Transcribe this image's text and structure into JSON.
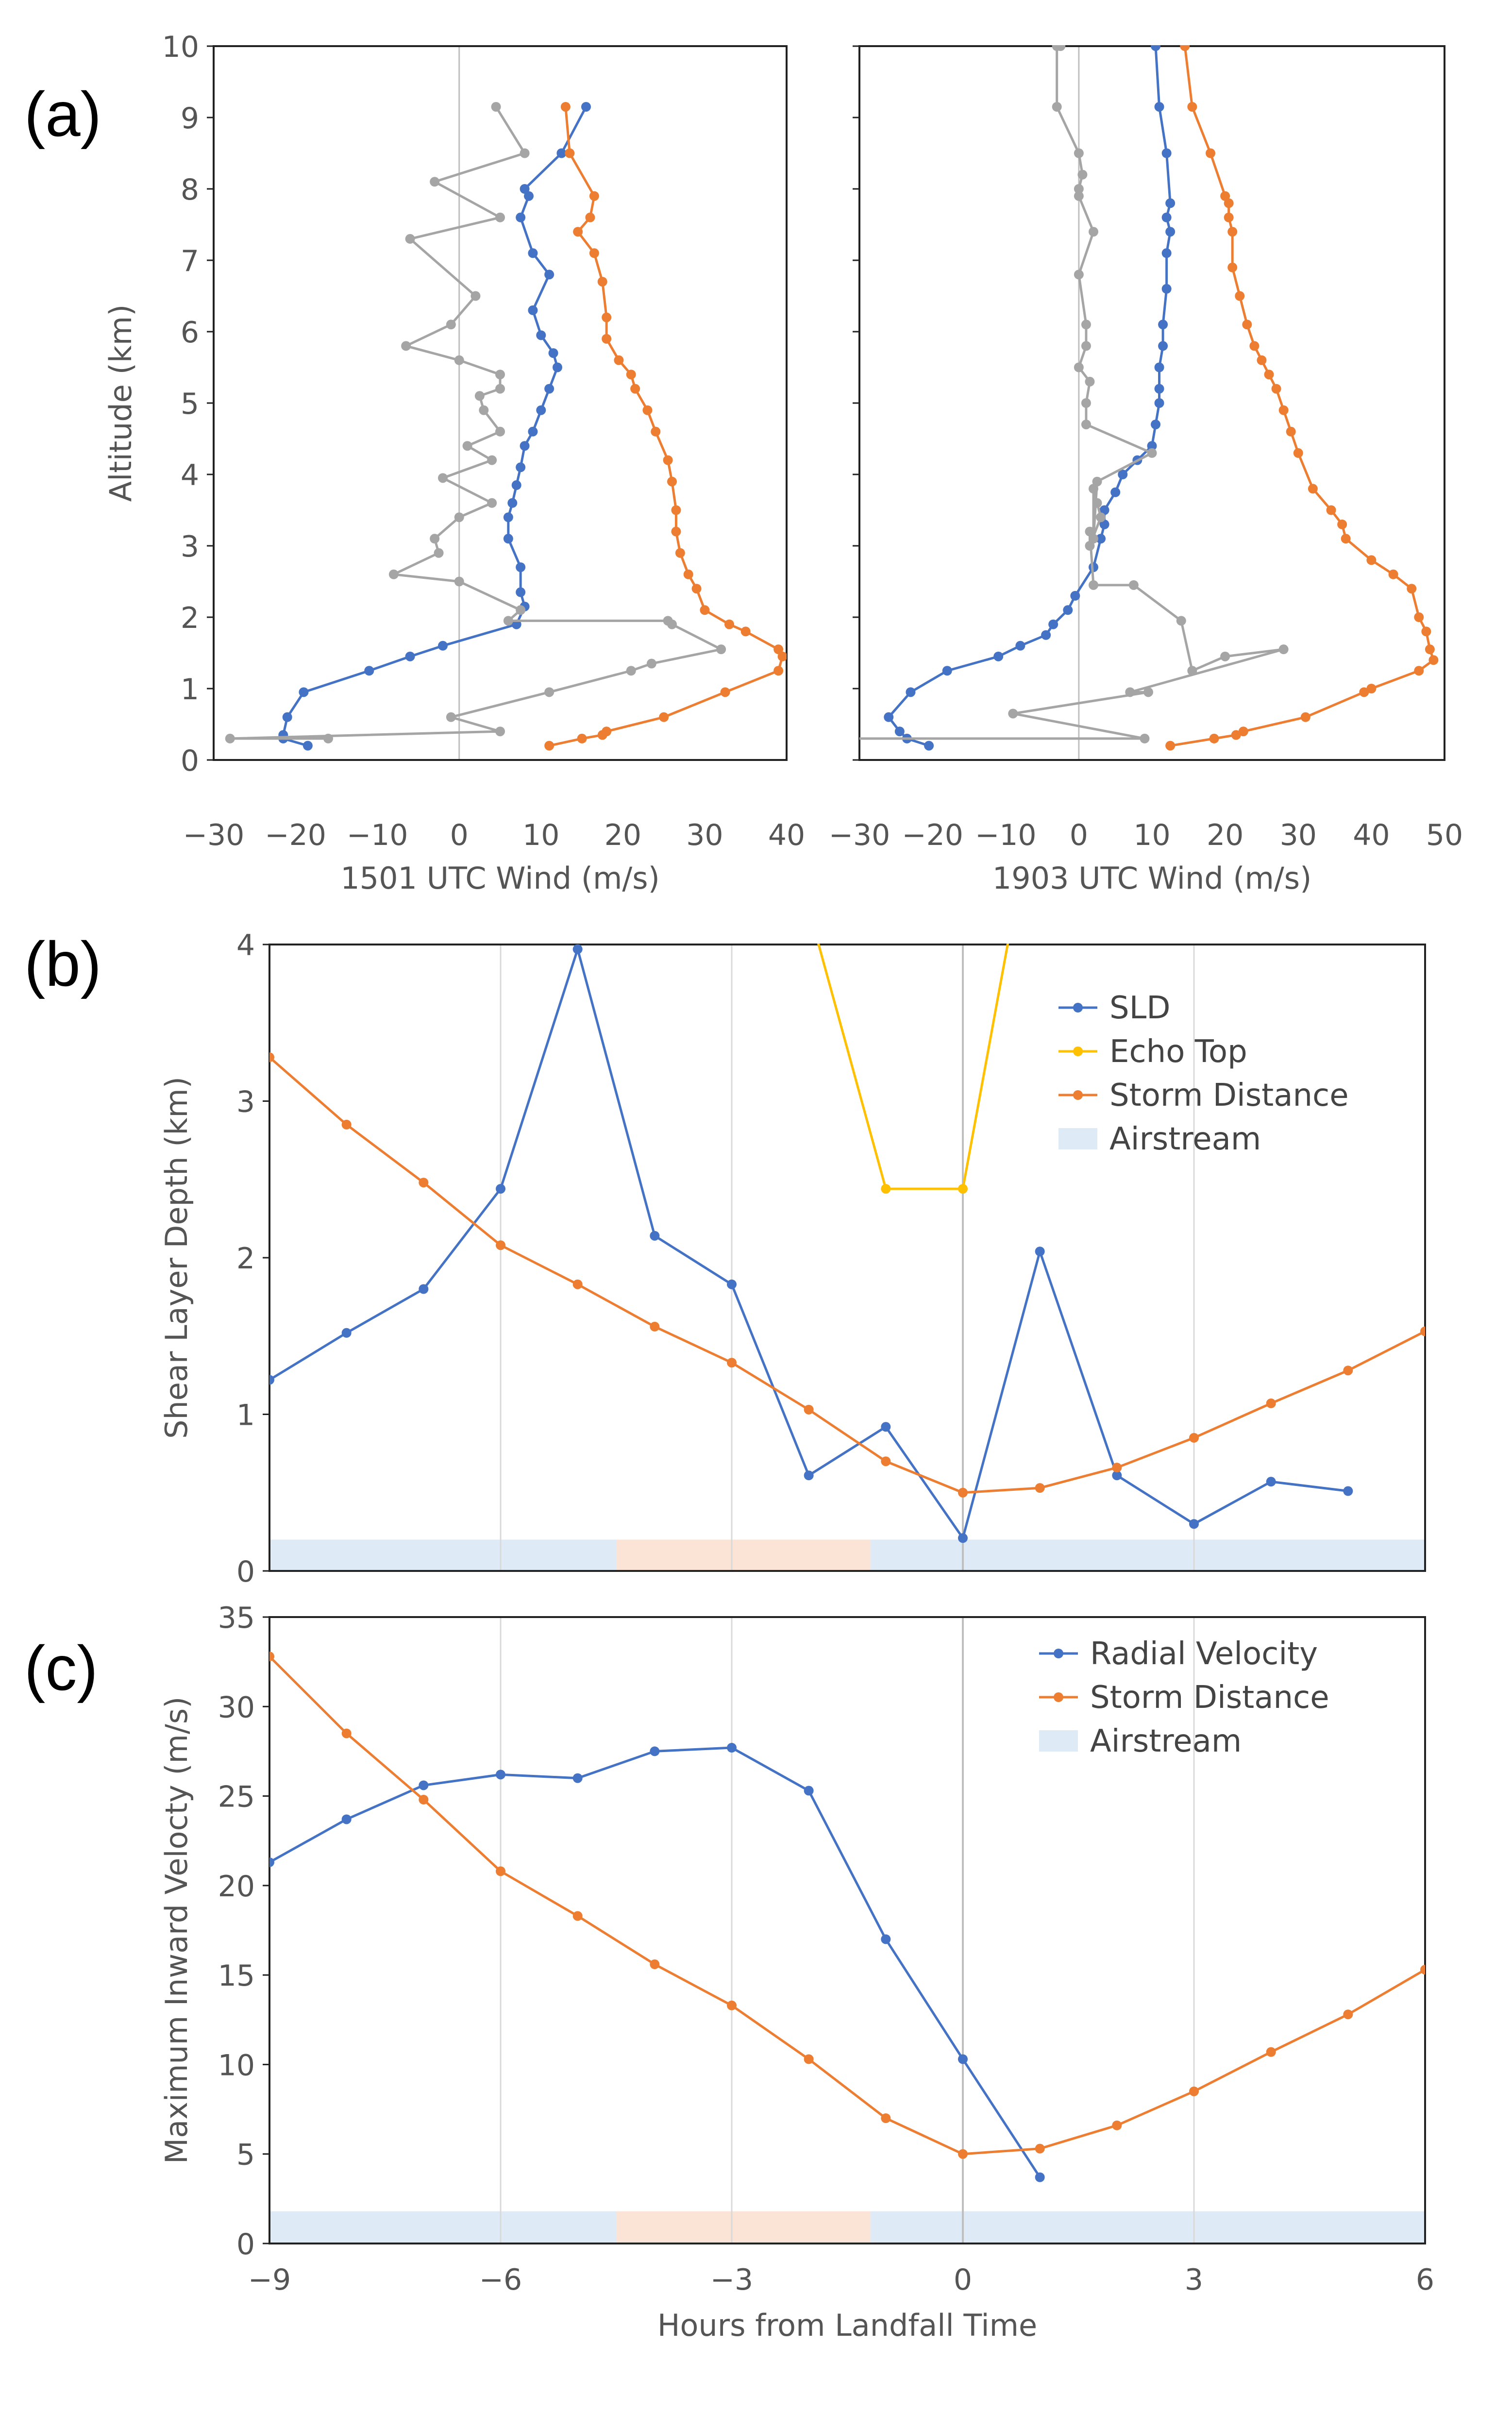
{
  "panel_labels": [
    "(a)",
    "(b)",
    "(c)"
  ],
  "colors": {
    "blue": "#4472C4",
    "orange": "#ED7D31",
    "gray": "#A5A5A5",
    "yellow": "#FFC000",
    "airstream_blue": "#DEEAF6",
    "airstream_peach": "#FBE4D5",
    "grid": "#D9D9D9",
    "zero": "#BFBFBF"
  },
  "chart_data": [
    {
      "id": "a1",
      "type": "line",
      "xlabel": "1501 UTC Wind (m/s)",
      "ylabel": "Altitude (km)",
      "xlim": [
        -30,
        40
      ],
      "ylim": [
        0,
        10
      ],
      "xticks": [
        -30,
        -20,
        -10,
        0,
        10,
        20,
        30,
        40
      ],
      "xtick_labels": [
        "−30",
        "−20",
        "−10",
        "0",
        "10",
        "20",
        "30",
        "40"
      ],
      "yticks": [
        0,
        1,
        2,
        3,
        4,
        5,
        6,
        7,
        8,
        9,
        10
      ],
      "series": [
        {
          "color": "blue",
          "x": [
            -18.5,
            -21.5,
            -21.5,
            -21,
            -19,
            -11,
            -6,
            -2,
            7,
            8,
            7.5,
            7.5,
            6,
            6,
            6.5,
            7,
            7.5,
            8,
            9,
            10,
            11,
            12,
            11.5,
            10,
            9,
            11,
            9,
            7.5,
            8.5,
            8,
            12.5,
            15.5
          ],
          "y": [
            0.2,
            0.3,
            0.35,
            0.6,
            0.95,
            1.25,
            1.45,
            1.6,
            1.9,
            2.15,
            2.35,
            2.7,
            3.1,
            3.4,
            3.6,
            3.85,
            4.1,
            4.4,
            4.6,
            4.9,
            5.2,
            5.5,
            5.7,
            5.95,
            6.3,
            6.8,
            7.1,
            7.6,
            7.9,
            8,
            8.5,
            9.15
          ]
        },
        {
          "color": "orange",
          "x": [
            11,
            15,
            17.5,
            18,
            25,
            32.5,
            39,
            39.5,
            39,
            35,
            33,
            30,
            29,
            28,
            27,
            26.5,
            26.5,
            26,
            25.5,
            24,
            23,
            21.5,
            21,
            19.5,
            18,
            18,
            17.5,
            16.5,
            14.5,
            16,
            16.5,
            13.5,
            13
          ],
          "y": [
            0.2,
            0.3,
            0.35,
            0.4,
            0.6,
            0.95,
            1.25,
            1.45,
            1.55,
            1.8,
            1.9,
            2.1,
            2.4,
            2.6,
            2.9,
            3.2,
            3.5,
            3.9,
            4.2,
            4.6,
            4.9,
            5.2,
            5.4,
            5.6,
            5.9,
            6.2,
            6.7,
            7.1,
            7.4,
            7.6,
            7.9,
            8.5,
            9.15
          ]
        },
        {
          "color": "gray",
          "x": [
            -16,
            -28,
            5,
            -1,
            11,
            21,
            23.5,
            32,
            26,
            25.5,
            6,
            7.5,
            0,
            -8,
            -2.5,
            -3,
            0,
            4,
            -2,
            4,
            1,
            5,
            3,
            2.5,
            5,
            5,
            0,
            -6.5,
            -1,
            2,
            -6,
            5,
            -3,
            8,
            4.5
          ],
          "y": [
            0.3,
            0.3,
            0.4,
            0.6,
            0.95,
            1.25,
            1.35,
            1.55,
            1.9,
            1.95,
            1.95,
            2.1,
            2.5,
            2.6,
            2.9,
            3.1,
            3.4,
            3.6,
            3.95,
            4.2,
            4.4,
            4.6,
            4.9,
            5.1,
            5.2,
            5.4,
            5.6,
            5.8,
            6.1,
            6.5,
            7.3,
            7.6,
            8.1,
            8.5,
            9.15
          ]
        }
      ]
    },
    {
      "id": "a2",
      "type": "line",
      "xlabel": "1903 UTC Wind (m/s)",
      "ylabel": "",
      "xlim": [
        -30,
        50
      ],
      "ylim": [
        0,
        10
      ],
      "xticks": [
        -30,
        -20,
        -10,
        0,
        10,
        20,
        30,
        40,
        50
      ],
      "xtick_labels": [
        "−30",
        "−20",
        "−10",
        "0",
        "10",
        "20",
        "30",
        "40",
        "50"
      ],
      "yticks": [
        0,
        1,
        2,
        3,
        4,
        5,
        6,
        7,
        8,
        9,
        10
      ],
      "series": [
        {
          "color": "blue",
          "x": [
            -20.5,
            -23.5,
            -24.5,
            -26,
            -23,
            -18,
            -11,
            -8,
            -4.5,
            -3.5,
            -1.5,
            -0.5,
            2,
            3,
            3.5,
            3.5,
            5,
            6,
            8,
            10,
            10.5,
            11,
            11,
            11,
            11.5,
            11.5,
            12,
            12,
            12.5,
            12,
            12.5,
            12,
            11,
            10.5
          ],
          "y": [
            0.2,
            0.3,
            0.4,
            0.6,
            0.95,
            1.25,
            1.45,
            1.6,
            1.75,
            1.9,
            2.1,
            2.3,
            2.7,
            3.1,
            3.3,
            3.5,
            3.75,
            4.0,
            4.2,
            4.4,
            4.7,
            5.0,
            5.2,
            5.5,
            5.8,
            6.1,
            6.6,
            7.1,
            7.4,
            7.6,
            7.8,
            8.5,
            9.15,
            10
          ]
        },
        {
          "color": "orange",
          "x": [
            12.5,
            18.5,
            21.5,
            22.5,
            31,
            39,
            40,
            46.5,
            48.5,
            48,
            47.5,
            46.5,
            45.5,
            43,
            40,
            36.5,
            36,
            34.5,
            32,
            30,
            29,
            28,
            27,
            26,
            25,
            24,
            23,
            22,
            21,
            21,
            20.5,
            20.5,
            20,
            18,
            15.5,
            14.5
          ],
          "y": [
            0.2,
            0.3,
            0.35,
            0.4,
            0.6,
            0.95,
            1.0,
            1.25,
            1.4,
            1.55,
            1.8,
            2.0,
            2.4,
            2.6,
            2.8,
            3.1,
            3.3,
            3.5,
            3.8,
            4.3,
            4.6,
            4.9,
            5.2,
            5.4,
            5.6,
            5.8,
            6.1,
            6.5,
            6.9,
            7.4,
            7.6,
            7.8,
            7.9,
            8.5,
            9.15,
            10
          ]
        },
        {
          "color": "gray",
          "x": [
            -33,
            9,
            -9,
            9.5,
            7,
            28,
            20,
            15.5,
            14,
            7.5,
            2,
            1.5,
            1.5,
            3,
            2.5,
            2,
            2,
            2.5,
            10,
            1,
            1,
            1.5,
            0,
            1,
            1,
            0,
            2,
            0,
            0,
            0.5,
            0,
            -3,
            -3,
            -2.5
          ],
          "y": [
            0.3,
            0.3,
            0.65,
            0.95,
            0.95,
            1.55,
            1.45,
            1.25,
            1.95,
            2.45,
            2.45,
            3.2,
            3.0,
            3.4,
            3.6,
            3.8,
            3.1,
            3.9,
            4.3,
            4.7,
            5.0,
            5.3,
            5.5,
            5.8,
            6.1,
            6.8,
            7.4,
            7.9,
            8.0,
            8.2,
            8.5,
            9.15,
            10,
            10
          ]
        }
      ]
    },
    {
      "id": "b",
      "type": "line",
      "xlabel": "",
      "ylabel": "Shear Layer Depth (km)",
      "xlim": [
        -9,
        6
      ],
      "ylim": [
        0,
        4
      ],
      "xticks": [
        -9,
        -6,
        -3,
        0,
        3,
        6
      ],
      "yticks": [
        0,
        1,
        2,
        3,
        4
      ],
      "ytick_labels": [
        "0",
        "1",
        "2",
        "3",
        "4"
      ],
      "legend_position": "top-right",
      "airstream": {
        "values": [
          0,
          0.2
        ],
        "bands": [
          {
            "color": "airstream_blue",
            "x": [
              -9,
              -4.5
            ]
          },
          {
            "color": "airstream_peach",
            "x": [
              -4.5,
              -1.2
            ]
          },
          {
            "color": "airstream_blue",
            "x": [
              -1.2,
              6
            ]
          }
        ]
      },
      "series": [
        {
          "name": "SLD",
          "color": "blue",
          "x": [
            -9,
            -8,
            -7,
            -6,
            -5,
            -4,
            -3,
            -2,
            -1,
            0,
            1,
            2,
            3,
            4,
            5
          ],
          "values": [
            1.22,
            1.52,
            1.8,
            2.44,
            3.97,
            2.14,
            1.83,
            0.61,
            0.92,
            0.21,
            2.04,
            0.61,
            0.3,
            0.57,
            0.51
          ]
        },
        {
          "name": "Echo Top",
          "color": "yellow",
          "x": [
            -1.9,
            -1,
            0,
            0.6
          ],
          "values": [
            4.05,
            2.44,
            2.44,
            4.05
          ]
        },
        {
          "name": "Storm Distance",
          "color": "orange",
          "x": [
            -9,
            -8,
            -7,
            -6,
            -5,
            -4,
            -3,
            -2,
            -1,
            0,
            1,
            2,
            3,
            4,
            5,
            6
          ],
          "values": [
            3.28,
            2.85,
            2.48,
            2.08,
            1.83,
            1.56,
            1.33,
            1.03,
            0.7,
            0.5,
            0.53,
            0.66,
            0.85,
            1.07,
            1.28,
            1.53
          ]
        }
      ],
      "legend": [
        "SLD",
        "Echo Top",
        "Storm Distance",
        "Airstream"
      ]
    },
    {
      "id": "c",
      "type": "line",
      "xlabel": "Hours from Landfall Time",
      "ylabel": "Maximum Inward Velocty (m/s)",
      "xlim": [
        -9,
        6
      ],
      "ylim": [
        0,
        35
      ],
      "xticks": [
        -9,
        -6,
        -3,
        0,
        3,
        6
      ],
      "xtick_labels": [
        "−9",
        "−6",
        "−3",
        "0",
        "3",
        "6"
      ],
      "yticks": [
        0,
        5,
        10,
        15,
        20,
        25,
        30,
        35
      ],
      "legend_position": "top-right",
      "airstream": {
        "values": [
          0,
          1.8
        ],
        "bands": [
          {
            "color": "airstream_blue",
            "x": [
              -9,
              -4.5
            ]
          },
          {
            "color": "airstream_peach",
            "x": [
              -4.5,
              -1.2
            ]
          },
          {
            "color": "airstream_blue",
            "x": [
              -1.2,
              6
            ]
          }
        ]
      },
      "series": [
        {
          "name": "Radial Velocity",
          "color": "blue",
          "x": [
            -9,
            -8,
            -7,
            -6,
            -5,
            -4,
            -3,
            -2,
            -1,
            0,
            1
          ],
          "values": [
            21.3,
            23.7,
            25.6,
            26.2,
            26,
            27.5,
            27.7,
            25.3,
            17,
            10.3,
            3.7
          ]
        },
        {
          "name": "Storm Distance",
          "color": "orange",
          "x": [
            -9,
            -8,
            -7,
            -6,
            -5,
            -4,
            -3,
            -2,
            -1,
            0,
            1,
            2,
            3,
            4,
            5,
            6
          ],
          "values": [
            32.8,
            28.5,
            24.8,
            20.8,
            18.3,
            15.6,
            13.3,
            10.3,
            7,
            5,
            5.3,
            6.6,
            8.5,
            10.7,
            12.8,
            15.3
          ]
        }
      ],
      "legend": [
        "Radial Velocity",
        "Storm Distance",
        "Airstream"
      ]
    }
  ]
}
